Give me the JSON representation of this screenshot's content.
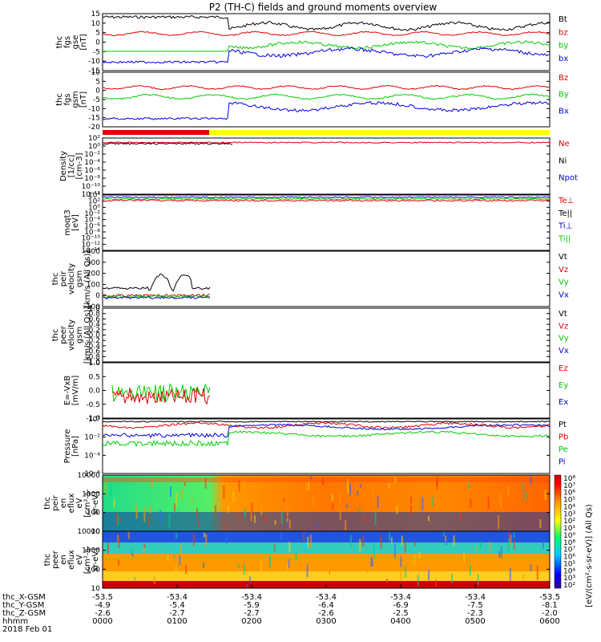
{
  "title": "P2 (TH-C) fields and ground moments overview",
  "colors": {
    "black": "#000000",
    "red": "#e00000",
    "green": "#00cc00",
    "blue": "#0000dd",
    "yellow": "#ffff00"
  },
  "chart_data": [
    {
      "type": "line",
      "panel": "fgs-gse",
      "ylabel": [
        "thc",
        "fgs",
        "gse",
        "[nT]"
      ],
      "ylim": [
        -15,
        15
      ],
      "yticks": [
        "15",
        "10",
        "5",
        "0",
        "-5",
        "-10",
        "-15"
      ],
      "series": [
        {
          "name": "Bt",
          "color": "black"
        },
        {
          "name": "bz",
          "color": "red"
        },
        {
          "name": "by",
          "color": "green"
        },
        {
          "name": "bx",
          "color": "blue"
        }
      ]
    },
    {
      "type": "line",
      "panel": "fgs-gsm",
      "ylabel": [
        "thc",
        "fgs",
        "gsm",
        "[nT]"
      ],
      "ylim": [
        -20,
        10
      ],
      "yticks": [
        "10",
        "5",
        "0",
        "-5",
        "-10",
        "-15",
        "-20"
      ],
      "series": [
        {
          "name": "Bz",
          "color": "red"
        },
        {
          "name": "By",
          "color": "green"
        },
        {
          "name": "Bx",
          "color": "blue"
        }
      ]
    },
    {
      "type": "bar",
      "panel": "region-bar",
      "colors": [
        "red",
        "yellow"
      ]
    },
    {
      "type": "line",
      "panel": "density",
      "ylabel": [
        "Density",
        "[1/cc]",
        "[cm-3]"
      ],
      "log": true,
      "yticks": [
        "10²",
        "10⁰",
        "10⁻²",
        "10⁻⁴",
        "10⁻⁶",
        "10⁻⁸",
        "10⁻¹⁰",
        "10⁻¹²"
      ],
      "series": [
        {
          "name": "Ne",
          "color": "red"
        },
        {
          "name": "Ni",
          "color": "black"
        },
        {
          "name": "Npot",
          "color": "blue"
        }
      ]
    },
    {
      "type": "line",
      "panel": "temperature",
      "ylabel": [
        "moqt3",
        "[eV]"
      ],
      "log": true,
      "yticks": [
        "10⁴",
        "10²",
        "10⁰",
        "10⁻²",
        "10⁻⁴",
        "10⁻⁶",
        "10⁻⁸",
        "10⁻¹⁰",
        "10⁻¹²",
        "10⁻¹⁴"
      ],
      "series": [
        {
          "name": "Te⊥",
          "color": "red"
        },
        {
          "name": "Te||",
          "color": "black"
        },
        {
          "name": "Ti⊥",
          "color": "blue"
        },
        {
          "name": "Ti||",
          "color": "green"
        }
      ]
    },
    {
      "type": "line",
      "panel": "ion-velocity",
      "ylabel": [
        "thc",
        "peir",
        "velocity",
        "gsm",
        "[km/s (All Qs)]"
      ],
      "ylim": [
        -100,
        400
      ],
      "yticks": [
        "400",
        "300",
        "200",
        "100",
        "0",
        "-100"
      ],
      "series": [
        {
          "name": "Vt",
          "color": "black"
        },
        {
          "name": "Vz",
          "color": "red"
        },
        {
          "name": "Vy",
          "color": "green"
        },
        {
          "name": "Vx",
          "color": "blue"
        }
      ]
    },
    {
      "type": "line",
      "panel": "electron-velocity",
      "ylabel": [
        "thc",
        "peer",
        "velocity",
        "gsm",
        "[km/s (All Qs)]"
      ],
      "ylim": [
        -1,
        1
      ],
      "yticks": [
        "1.0",
        "0.8",
        "0.6",
        "0.4",
        "0.2",
        "0.0",
        "-0.2",
        "-0.4",
        "-0.6",
        "-0.8",
        "-1.0"
      ],
      "series": [
        {
          "name": "Vt",
          "color": "black"
        },
        {
          "name": "Vz",
          "color": "red"
        },
        {
          "name": "Vy",
          "color": "green"
        },
        {
          "name": "Vx",
          "color": "blue"
        }
      ]
    },
    {
      "type": "line",
      "panel": "electric-field",
      "ylabel": [
        "E=-VxB",
        "[mV/m]"
      ],
      "ylim": [
        -1,
        1
      ],
      "yticks": [
        "1.0",
        "0.5",
        "0.0",
        "-0.5",
        "-1.0"
      ],
      "series": [
        {
          "name": "Ez",
          "color": "red"
        },
        {
          "name": "Ey",
          "color": "green"
        },
        {
          "name": "Ex",
          "color": "blue"
        }
      ]
    },
    {
      "type": "line",
      "panel": "pressure",
      "ylabel": [
        "Pressure",
        "[nPa]"
      ],
      "log": true,
      "yticks": [
        "10⁰",
        "10⁻²",
        "10⁻⁴",
        "10⁻⁶"
      ],
      "series": [
        {
          "name": "Pt",
          "color": "black"
        },
        {
          "name": "Pb",
          "color": "red"
        },
        {
          "name": "Pe",
          "color": "green"
        },
        {
          "name": "Pi",
          "color": "blue"
        }
      ]
    },
    {
      "type": "heatmap",
      "panel": "ion-spectrogram",
      "ylabel": [
        "thc",
        "peir",
        "en",
        "eflux",
        "eV",
        "[cm²-s-",
        "sr-eV]"
      ],
      "log": true,
      "yticks": [
        "10000",
        "1000",
        "100",
        "10"
      ]
    },
    {
      "type": "heatmap",
      "panel": "electron-spectrogram",
      "ylabel": [
        "thc",
        "peer",
        "en",
        "eflux",
        "eV",
        "[cm²-s-",
        "sr-eV]"
      ],
      "log": true,
      "yticks": [
        "10000",
        "1000",
        "100",
        "10"
      ]
    }
  ],
  "colorbar": {
    "label": "[eV/(cm²-s-sr-eV)] (All Qs)",
    "ticks": [
      "10⁸",
      "10⁷",
      "10⁶",
      "10⁵",
      "10⁴",
      "10³",
      "10²",
      "10¹",
      "10⁰",
      "10⁸",
      "10⁷",
      "10⁶",
      "10⁵",
      "10⁴",
      "10³",
      "10²"
    ]
  },
  "xaxis": {
    "rows": [
      {
        "label": "thc_X-GSM",
        "values": [
          "-53.5",
          "-53.4",
          "-53.4",
          "-53.4",
          "-53.4",
          "-53.4",
          "-53.5"
        ]
      },
      {
        "label": "thc_Y-GSM",
        "values": [
          "-4.9",
          "-5.4",
          "-5.9",
          "-6.4",
          "-6.9",
          "-7.5",
          "-8.1"
        ]
      },
      {
        "label": "thc_Z-GSM",
        "values": [
          "-2.6",
          "-2.7",
          "-2.7",
          "-2.6",
          "-2.5",
          "-2.3",
          "-2.0"
        ]
      },
      {
        "label": "hhmm",
        "values": [
          "0000",
          "0100",
          "0200",
          "0300",
          "0400",
          "0500",
          "0600"
        ]
      }
    ],
    "date": "2018 Feb 01"
  }
}
